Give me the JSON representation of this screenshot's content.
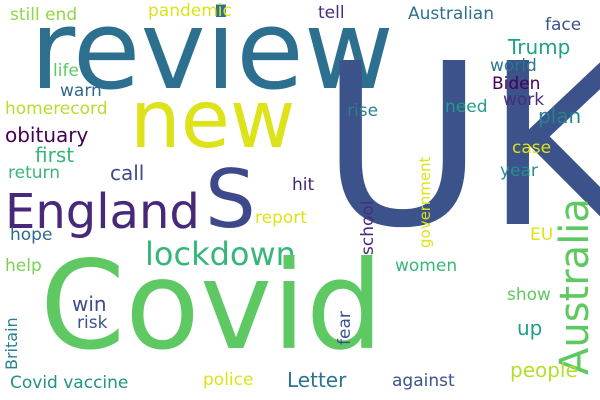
{
  "words": [
    {
      "key": "review",
      "text": "review",
      "color": "#2c6f8e"
    },
    {
      "key": "new",
      "text": "new",
      "color": "#dde318"
    },
    {
      "key": "uk",
      "text": "UK",
      "color": "#3b528b"
    },
    {
      "key": "s",
      "text": "S",
      "color": "#3e4989"
    },
    {
      "key": "england",
      "text": "England",
      "color": "#482878"
    },
    {
      "key": "covid",
      "text": "Covid",
      "color": "#5ec962"
    },
    {
      "key": "australia",
      "text": "Australia",
      "color": "#5ec962"
    },
    {
      "key": "lockdown",
      "text": "lockdown",
      "color": "#35b779"
    },
    {
      "key": "still-end",
      "text": "still end",
      "color": "#8fd744"
    },
    {
      "key": "pandemic",
      "text": "pandemic",
      "color": "#dde318"
    },
    {
      "key": "tell",
      "text": "tell",
      "color": "#472d7b"
    },
    {
      "key": "australian",
      "text": "Australian",
      "color": "#2c728e"
    },
    {
      "key": "face",
      "text": "face",
      "color": "#3b528b"
    },
    {
      "key": "trump",
      "text": "Trump",
      "color": "#1fa187"
    },
    {
      "key": "world",
      "text": "world",
      "color": "#2a788e"
    },
    {
      "key": "biden",
      "text": "Biden",
      "color": "#440154"
    },
    {
      "key": "life",
      "text": "life",
      "color": "#5ec962"
    },
    {
      "key": "warn",
      "text": "warn",
      "color": "#31688e"
    },
    {
      "key": "work",
      "text": "work",
      "color": "#472d7b"
    },
    {
      "key": "homerecord",
      "text": "homerecord",
      "color": "#b5de2b"
    },
    {
      "key": "need",
      "text": "need",
      "color": "#1f9e89"
    },
    {
      "key": "rise",
      "text": "rise",
      "color": "#26828e"
    },
    {
      "key": "plan",
      "text": "plan",
      "color": "#26828e"
    },
    {
      "key": "obituary",
      "text": "obituary",
      "color": "#440154"
    },
    {
      "key": "first",
      "text": "first",
      "color": "#35b779"
    },
    {
      "key": "case",
      "text": "case",
      "color": "#dde318"
    },
    {
      "key": "call",
      "text": "call",
      "color": "#3e4a89"
    },
    {
      "key": "return",
      "text": "return",
      "color": "#35b779"
    },
    {
      "key": "year",
      "text": "year",
      "color": "#21918c"
    },
    {
      "key": "hit",
      "text": "hit",
      "color": "#482475"
    },
    {
      "key": "report",
      "text": "report",
      "color": "#dde318"
    },
    {
      "key": "hope",
      "text": "hope",
      "color": "#31688e"
    },
    {
      "key": "eu",
      "text": "EU",
      "color": "#dde318"
    },
    {
      "key": "help",
      "text": "help",
      "color": "#7ad151"
    },
    {
      "key": "women",
      "text": "women",
      "color": "#35b779"
    },
    {
      "key": "win",
      "text": "win",
      "color": "#3e4a89"
    },
    {
      "key": "show",
      "text": "show",
      "color": "#5ec962"
    },
    {
      "key": "risk",
      "text": "risk",
      "color": "#3b528b"
    },
    {
      "key": "up",
      "text": "up",
      "color": "#1f9e89"
    },
    {
      "key": "people",
      "text": "people",
      "color": "#b5de2b"
    },
    {
      "key": "covid-vaccine",
      "text": "Covid vaccine",
      "color": "#21918c"
    },
    {
      "key": "police",
      "text": "police",
      "color": "#dde318"
    },
    {
      "key": "letter",
      "text": "Letter",
      "color": "#2c728e"
    },
    {
      "key": "against",
      "text": "against",
      "color": "#3b528b"
    },
    {
      "key": "school",
      "text": "school",
      "color": "#472d7b"
    },
    {
      "key": "government",
      "text": "government",
      "color": "#dde318"
    },
    {
      "key": "britain",
      "text": "Britain",
      "color": "#26828e"
    },
    {
      "key": "fear",
      "text": "fear",
      "color": "#3b528b"
    }
  ]
}
